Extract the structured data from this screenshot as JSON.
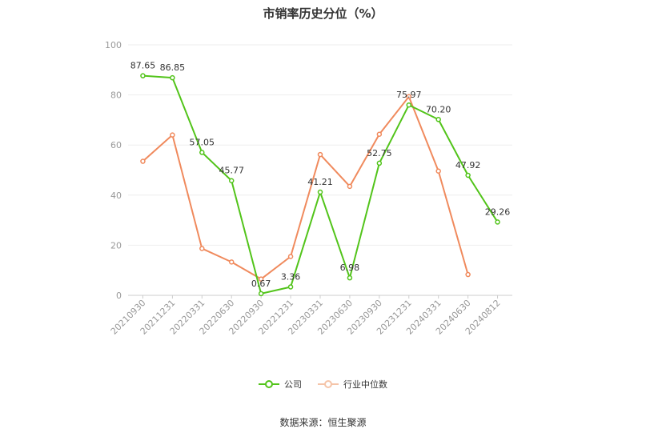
{
  "chart_data": {
    "type": "line",
    "title": "市销率历史分位（%）",
    "categories": [
      "20210930",
      "20211231",
      "20220331",
      "20220630",
      "20220930",
      "20221231",
      "20230331",
      "20230630",
      "20230930",
      "20231231",
      "20240331",
      "20240630",
      "20240812"
    ],
    "ylim": [
      0,
      100
    ],
    "yticks": [
      0,
      20,
      40,
      60,
      80,
      100
    ],
    "grid": true,
    "legend_position": "bottom",
    "series": [
      {
        "name": "公司",
        "color": "#52c41a",
        "values": [
          87.65,
          86.85,
          57.05,
          45.77,
          0.67,
          3.36,
          41.21,
          6.98,
          52.75,
          75.97,
          70.2,
          47.92,
          29.26
        ],
        "labels": [
          "87.65",
          "86.85",
          "57.05",
          "45.77",
          "0.67",
          "3.36",
          "41.21",
          "6.98",
          "52.75",
          "75.97",
          "70.20",
          "47.92",
          "29.26"
        ]
      },
      {
        "name": "行业中位数",
        "color": "#f08a5d",
        "values": [
          53.5,
          64.0,
          18.7,
          13.3,
          6.5,
          15.5,
          56.2,
          43.5,
          64.3,
          79.3,
          49.6,
          8.3,
          null
        ]
      }
    ]
  },
  "source_text": "数据来源：恒生聚源"
}
